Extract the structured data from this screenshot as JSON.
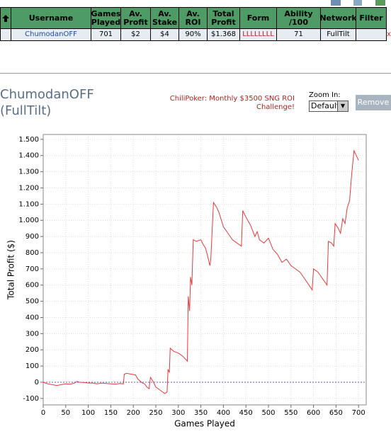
{
  "table": {
    "headers": [
      "Username",
      "Games Played",
      "Av. Profit",
      "Av. Stake",
      "Av. ROI",
      "Total Profit",
      "Form",
      "Ability /100",
      "Network",
      "Filter"
    ],
    "row": {
      "cells": [
        "ChumodanOFF",
        "701",
        "$2",
        "$4",
        "90%",
        "$1.368",
        "LLLLLLLL",
        "71",
        "FullTilt"
      ],
      "remove": "x"
    }
  },
  "player": {
    "name": "ChumodanOFF",
    "network": "(FullTilt)"
  },
  "challenge": "ChiliPoker: Monthly $3500 SNG ROI Challenge!",
  "zoom": {
    "label": "Zoom In:",
    "selected": "Default"
  },
  "remove_button": "Remove",
  "chart_data": {
    "type": "line",
    "xlabel": "Games Played",
    "ylabel": "Total Profit ($)",
    "color": "#e8393c",
    "grid": true,
    "zero_line": "#5a5ad0",
    "x": [
      0,
      5,
      10,
      20,
      30,
      40,
      50,
      60,
      70,
      75,
      80,
      90,
      100,
      110,
      120,
      130,
      140,
      150,
      160,
      170,
      178,
      180,
      185,
      195,
      205,
      210,
      220,
      225,
      230,
      235,
      238,
      245,
      250,
      260,
      270,
      275,
      277,
      280,
      282,
      290,
      300,
      310,
      320,
      322,
      325,
      327,
      330,
      333,
      340,
      350,
      355,
      360,
      365,
      370,
      372,
      378,
      385,
      390,
      400,
      410,
      420,
      430,
      440,
      443,
      450,
      460,
      470,
      475,
      480,
      490,
      500,
      510,
      520,
      530,
      540,
      550,
      560,
      570,
      580,
      590,
      597,
      600,
      610,
      620,
      630,
      633,
      640,
      645,
      648,
      655,
      660,
      665,
      670,
      675,
      680,
      685,
      690,
      695,
      700
    ],
    "values": [
      0,
      -5,
      -10,
      -15,
      -20,
      -15,
      -10,
      -12,
      -5,
      5,
      0,
      -2,
      -5,
      -5,
      -10,
      -5,
      -8,
      -10,
      -12,
      -8,
      -10,
      50,
      55,
      50,
      45,
      20,
      -5,
      -10,
      -30,
      -40,
      30,
      0,
      -30,
      -50,
      -70,
      -60,
      80,
      60,
      210,
      190,
      180,
      160,
      130,
      530,
      440,
      650,
      600,
      880,
      870,
      880,
      850,
      830,
      780,
      720,
      760,
      1110,
      1080,
      1050,
      960,
      920,
      880,
      860,
      840,
      1060,
      1020,
      970,
      900,
      930,
      880,
      860,
      890,
      820,
      790,
      740,
      760,
      720,
      700,
      680,
      640,
      600,
      570,
      700,
      680,
      640,
      600,
      870,
      860,
      840,
      980,
      950,
      920,
      1010,
      980,
      1080,
      1120,
      1290,
      1430,
      1400,
      1370
    ],
    "xlim": [
      0,
      717
    ],
    "ylim": [
      -140,
      1530
    ],
    "xticks": [
      0,
      50,
      100,
      150,
      200,
      250,
      300,
      350,
      400,
      450,
      500,
      550,
      600,
      650,
      700
    ],
    "yticks": [
      -100,
      0,
      100,
      200,
      300,
      400,
      500,
      600,
      700,
      800,
      900,
      {
        "value": 1000,
        "label": "1.000"
      },
      {
        "value": 1100,
        "label": "1.100"
      },
      {
        "value": 1200,
        "label": "1.200"
      },
      {
        "value": 1300,
        "label": "1.300"
      },
      {
        "value": 1400,
        "label": "1.400"
      },
      {
        "value": 1500,
        "label": "1.500"
      }
    ]
  }
}
